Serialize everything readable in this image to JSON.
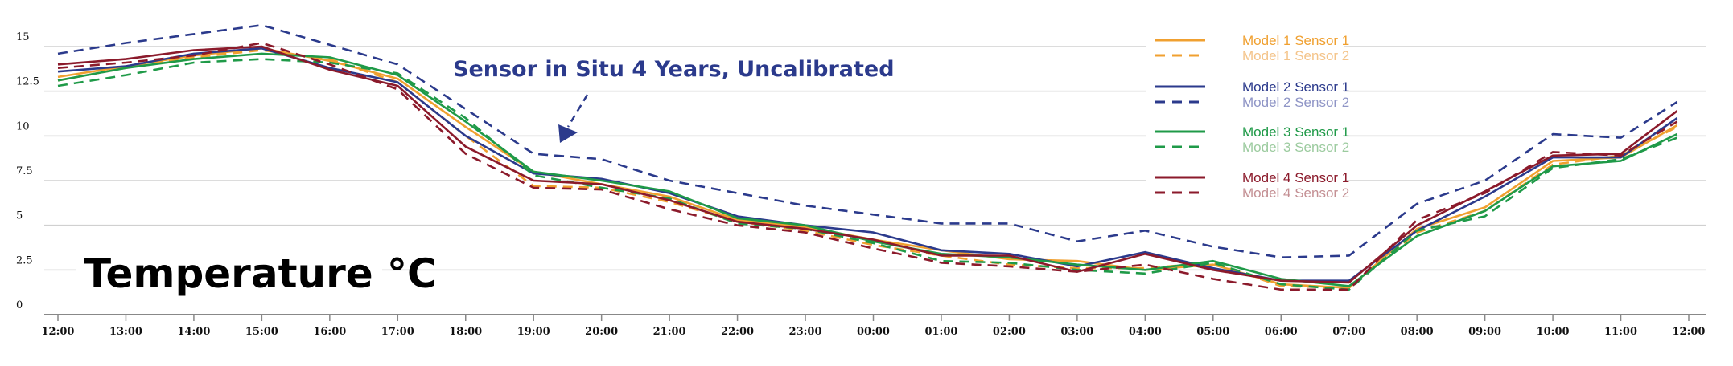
{
  "chart_data": {
    "type": "line",
    "title": "",
    "ylabel": "Temperature °C",
    "xlabel": "",
    "annotation": "Sensor in Situ 4 Years, Uncalibrated",
    "ylim": [
      0,
      15
    ],
    "yticks": [
      "0",
      "2.5",
      "5",
      "7.5",
      "10",
      "12.5",
      "15"
    ],
    "ytick_values": [
      0,
      2.5,
      5,
      7.5,
      10,
      12.5,
      15
    ],
    "xlim": [
      -0.2,
      24.2
    ],
    "xtick_labels": [
      "12:00",
      "13:00",
      "14:00",
      "15:00",
      "16:00",
      "17:00",
      "18:00",
      "19:00",
      "20:00",
      "21:00",
      "22:00",
      "23:00",
      "00:00",
      "01:00",
      "02:00",
      "03:00",
      "04:00",
      "05:00",
      "06:00",
      "07:00",
      "08:00",
      "09:00",
      "10:00",
      "11:00",
      "12:00"
    ],
    "grid": true,
    "legend_position": "top-right",
    "x_hours_from_start": [
      0,
      1,
      2,
      3,
      4,
      5,
      6,
      7,
      8,
      9,
      10,
      11,
      12,
      13,
      14,
      15,
      16,
      17,
      18,
      19,
      20,
      21,
      22,
      23,
      23.83
    ],
    "series": [
      {
        "name": "Model 1 Sensor 1",
        "color": "#F0A030",
        "label_color": "#F0A030",
        "dashed": false,
        "values": [
          13.3,
          13.9,
          14.5,
          14.9,
          14.2,
          13.2,
          10.5,
          8.0,
          7.3,
          6.6,
          5.3,
          4.9,
          4.2,
          3.6,
          3.1,
          3.0,
          2.5,
          2.8,
          1.7,
          1.5,
          4.8,
          6.0,
          8.6,
          8.8,
          10.6
        ]
      },
      {
        "name": "Model 1 Sensor 2",
        "color": "#F0A030",
        "label_color": "#F4C48A",
        "dashed": true,
        "values": [
          13.1,
          13.8,
          14.4,
          14.8,
          14.3,
          13.0,
          10.0,
          7.2,
          7.1,
          6.3,
          5.2,
          4.7,
          3.9,
          3.3,
          2.8,
          2.6,
          2.6,
          2.9,
          1.6,
          1.5,
          4.6,
          5.8,
          8.4,
          8.9,
          10.5
        ]
      },
      {
        "name": "Model 2 Sensor 1",
        "color": "#2B3A8C",
        "label_color": "#2B3A8C",
        "dashed": false,
        "values": [
          13.6,
          13.9,
          14.6,
          14.9,
          13.8,
          13.0,
          10.0,
          7.9,
          7.6,
          6.8,
          5.5,
          5.0,
          4.6,
          3.6,
          3.4,
          2.7,
          3.5,
          2.6,
          1.9,
          1.9,
          4.7,
          6.6,
          8.8,
          8.8,
          11.0
        ]
      },
      {
        "name": "Model 2 Sensor 2",
        "color": "#2B3A8C",
        "label_color": "#8F95C6",
        "dashed": true,
        "values": [
          14.6,
          15.2,
          15.7,
          16.2,
          15.1,
          14.0,
          11.5,
          9.0,
          8.7,
          7.5,
          6.8,
          6.1,
          5.6,
          5.1,
          5.1,
          4.1,
          4.7,
          3.8,
          3.2,
          3.3,
          6.2,
          7.5,
          10.1,
          9.9,
          11.9
        ]
      },
      {
        "name": "Model 3 Sensor 1",
        "color": "#1F9A48",
        "label_color": "#1F9A48",
        "dashed": false,
        "values": [
          13.1,
          13.8,
          14.3,
          14.6,
          14.4,
          13.4,
          10.8,
          8.0,
          7.5,
          6.9,
          5.4,
          5.0,
          4.1,
          3.4,
          3.2,
          2.8,
          2.5,
          3.0,
          2.0,
          1.6,
          4.4,
          5.8,
          8.3,
          8.6,
          10.1
        ]
      },
      {
        "name": "Model 3 Sensor 2",
        "color": "#1F9A48",
        "label_color": "#9CCB9F",
        "dashed": true,
        "values": [
          12.8,
          13.4,
          14.1,
          14.3,
          14.1,
          13.5,
          11.0,
          7.8,
          7.1,
          6.5,
          5.1,
          4.8,
          4.0,
          3.0,
          2.9,
          2.5,
          2.3,
          2.9,
          1.7,
          1.4,
          4.7,
          5.5,
          8.2,
          8.7,
          9.9
        ]
      },
      {
        "name": "Model 4 Sensor 1",
        "color": "#8B1A2B",
        "label_color": "#8B1A2B",
        "dashed": false,
        "values": [
          14.0,
          14.3,
          14.8,
          15.0,
          13.7,
          12.8,
          9.4,
          7.5,
          7.3,
          6.4,
          5.2,
          4.8,
          4.2,
          3.3,
          3.3,
          2.4,
          3.4,
          2.5,
          1.9,
          1.8,
          5.0,
          6.9,
          8.9,
          9.0,
          11.4
        ]
      },
      {
        "name": "Model 4 Sensor 2",
        "color": "#8B1A2B",
        "label_color": "#C49094",
        "dashed": true,
        "values": [
          13.8,
          14.1,
          14.5,
          15.2,
          14.0,
          12.6,
          9.0,
          7.1,
          7.0,
          5.9,
          5.0,
          4.6,
          3.7,
          2.9,
          2.7,
          2.4,
          2.8,
          2.0,
          1.4,
          1.4,
          5.3,
          6.8,
          9.1,
          8.9,
          10.8
        ]
      }
    ]
  }
}
